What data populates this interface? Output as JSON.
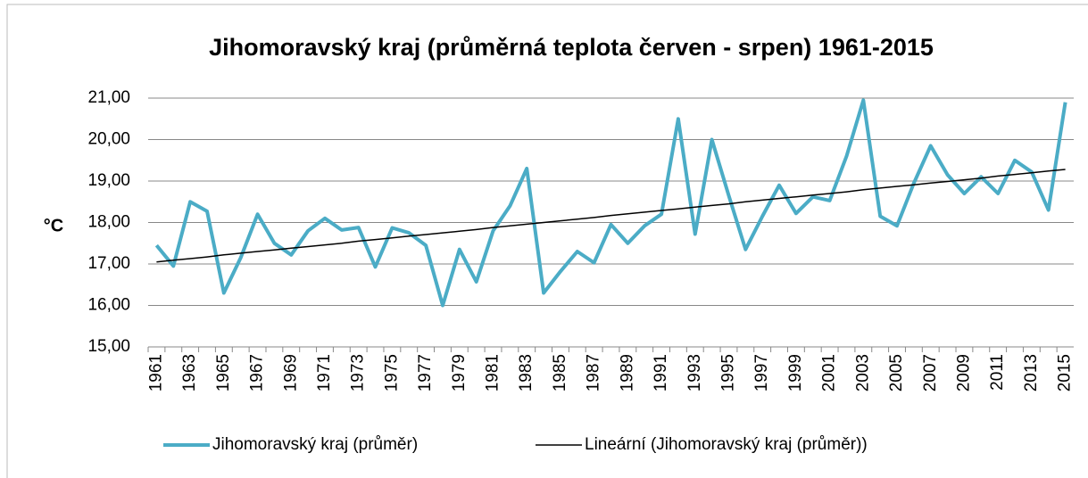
{
  "chart_data": {
    "type": "line",
    "title": "Jihomoravský kraj  (průměrná teplota červen - srpen) 1961-2015",
    "y_label": "°C",
    "categories": [
      "1961",
      null,
      "1963",
      null,
      "1965",
      null,
      "1967",
      null,
      "1969",
      null,
      "1971",
      null,
      "1973",
      null,
      "1975",
      null,
      "1977",
      null,
      "1979",
      null,
      "1981",
      null,
      "1983",
      null,
      "1985",
      null,
      "1987",
      null,
      "1989",
      null,
      "1991",
      null,
      "1993",
      null,
      "1995",
      null,
      "1997",
      null,
      "1999",
      null,
      "2001",
      null,
      "2003",
      null,
      "2005",
      null,
      "2007",
      null,
      "2009",
      null,
      "2011",
      null,
      "2013",
      null,
      "2015"
    ],
    "series": [
      {
        "name": "Jihomoravský kraj (průměr)",
        "color": "#4bacc6",
        "width": 4,
        "values": [
          17.45,
          16.95,
          18.5,
          18.27,
          16.3,
          17.15,
          18.2,
          17.5,
          17.22,
          17.8,
          18.1,
          17.82,
          17.88,
          16.93,
          17.87,
          17.75,
          17.45,
          16.0,
          17.35,
          16.57,
          17.8,
          18.4,
          19.3,
          16.3,
          16.82,
          17.3,
          17.03,
          17.95,
          17.5,
          17.92,
          18.2,
          20.5,
          17.72,
          20.0,
          18.65,
          17.35,
          18.15,
          18.9,
          18.22,
          18.62,
          18.53,
          19.6,
          20.95,
          18.15,
          17.92,
          18.95,
          19.85,
          19.15,
          18.7,
          19.1,
          18.7,
          19.5,
          19.22,
          18.3,
          20.9
        ]
      },
      {
        "name": "Lineární (Jihomoravský kraj (průměr))",
        "color": "#000000",
        "width": 1.5,
        "values": [
          17.05,
          17.09,
          17.13,
          17.17,
          17.22,
          17.26,
          17.3,
          17.34,
          17.38,
          17.42,
          17.46,
          17.5,
          17.55,
          17.59,
          17.63,
          17.67,
          17.71,
          17.75,
          17.79,
          17.83,
          17.88,
          17.92,
          17.96,
          18.0,
          18.04,
          18.08,
          18.12,
          18.17,
          18.21,
          18.25,
          18.29,
          18.33,
          18.37,
          18.41,
          18.45,
          18.5,
          18.54,
          18.58,
          18.62,
          18.66,
          18.7,
          18.74,
          18.79,
          18.83,
          18.87,
          18.91,
          18.95,
          18.99,
          19.03,
          19.07,
          19.12,
          19.16,
          19.2,
          19.24,
          19.28
        ]
      }
    ],
    "ylim": [
      15,
      21
    ],
    "yticks": [
      {
        "value": 15,
        "label": "15,00"
      },
      {
        "value": 16,
        "label": "16,00"
      },
      {
        "value": 17,
        "label": "17,00"
      },
      {
        "value": 18,
        "label": "18,00"
      },
      {
        "value": 19,
        "label": "19,00"
      },
      {
        "value": 20,
        "label": "20,00"
      },
      {
        "value": 21,
        "label": "21,00"
      }
    ],
    "grid": true,
    "legend": "bottom"
  }
}
